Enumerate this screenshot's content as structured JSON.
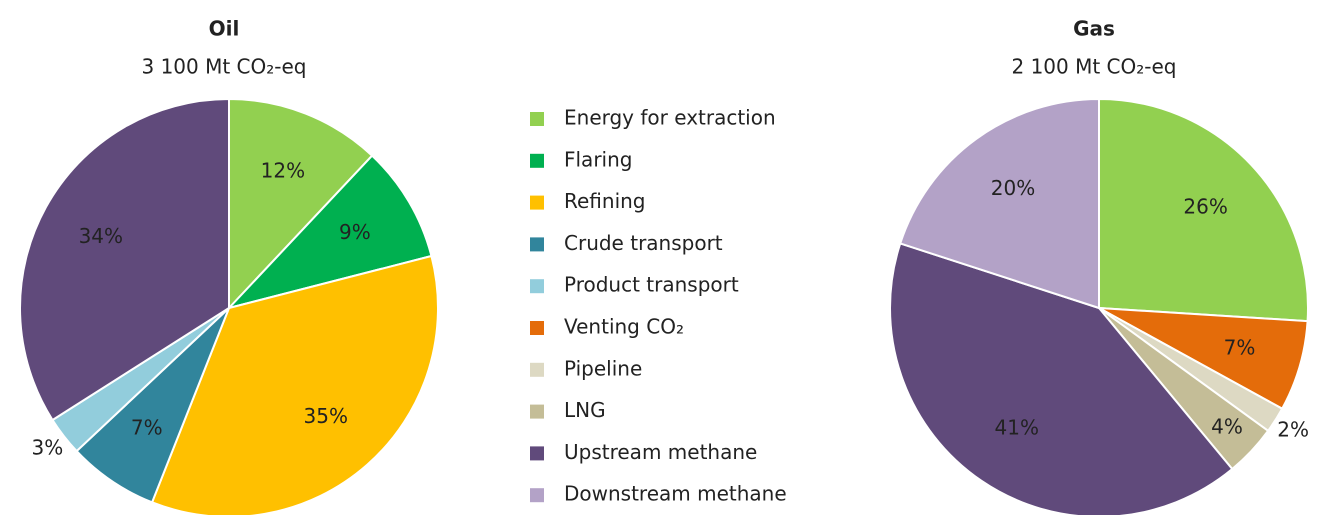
{
  "chart_data": [
    {
      "type": "pie",
      "title": "Oil",
      "subtitle": "3 100 Mt CO₂-eq",
      "categories": [
        "Energy for extraction",
        "Flaring",
        "Refining",
        "Crude transport",
        "Product transport",
        "Upstream methane"
      ],
      "values": [
        12,
        9,
        35,
        7,
        3,
        34
      ],
      "value_labels": [
        "12%",
        "9%",
        "35%",
        "7%",
        "3%",
        "34%"
      ]
    },
    {
      "type": "pie",
      "title": "Gas",
      "subtitle": "2 100 Mt CO₂-eq",
      "categories": [
        "Energy for extraction",
        "Venting CO₂",
        "Pipeline",
        "LNG",
        "Upstream methane",
        "Downstream methane"
      ],
      "values": [
        26,
        7,
        2,
        4,
        41,
        20
      ],
      "value_labels": [
        "26%",
        "7%",
        "2%",
        "4%",
        "41%",
        "20%"
      ]
    }
  ],
  "legend": [
    {
      "name": "Energy for extraction",
      "color": "#92d050"
    },
    {
      "name": "Flaring",
      "color": "#00b050"
    },
    {
      "name": "Refining",
      "color": "#ffc000"
    },
    {
      "name": "Crude transport",
      "color": "#31859c"
    },
    {
      "name": "Product transport",
      "color": "#92cddc"
    },
    {
      "name": "Venting CO₂",
      "color": "#e46c0a"
    },
    {
      "name": "Pipeline",
      "color": "#ddd9c3"
    },
    {
      "name": "LNG",
      "color": "#c4bd97"
    },
    {
      "name": "Upstream methane",
      "color": "#604a7b"
    },
    {
      "name": "Downstream methane",
      "color": "#b3a2c7"
    }
  ]
}
